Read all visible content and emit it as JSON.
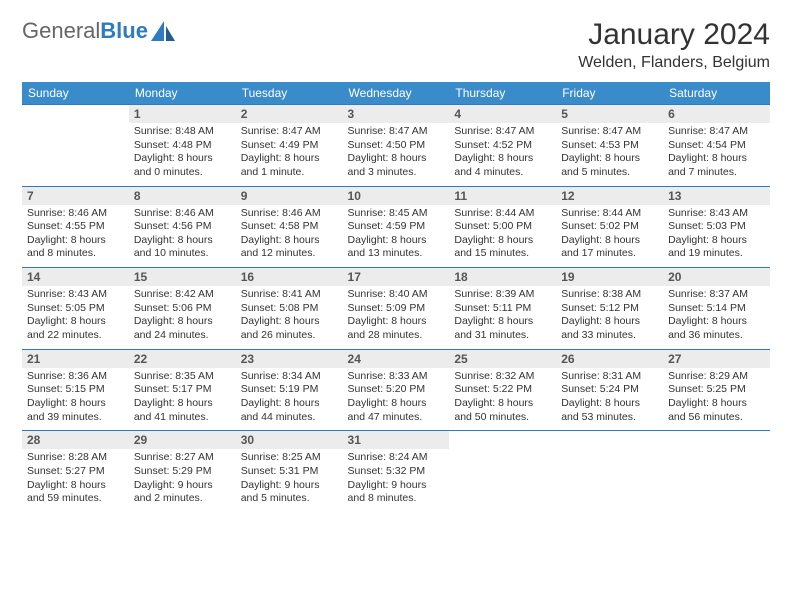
{
  "brand": {
    "part1": "General",
    "part2": "Blue"
  },
  "title": "January 2024",
  "location": "Welden, Flanders, Belgium",
  "colors": {
    "header_bg": "#3a8bc9",
    "header_text": "#ffffff",
    "daynum_bg": "#ececec",
    "rule": "#2e7bbf",
    "text": "#333333",
    "brand_blue": "#2e7bbf",
    "page_bg": "#ffffff"
  },
  "dayHeaders": [
    "Sunday",
    "Monday",
    "Tuesday",
    "Wednesday",
    "Thursday",
    "Friday",
    "Saturday"
  ],
  "weeks": [
    [
      null,
      {
        "n": "1",
        "sr": "8:48 AM",
        "ss": "4:48 PM",
        "dl": "8 hours and 0 minutes."
      },
      {
        "n": "2",
        "sr": "8:47 AM",
        "ss": "4:49 PM",
        "dl": "8 hours and 1 minute."
      },
      {
        "n": "3",
        "sr": "8:47 AM",
        "ss": "4:50 PM",
        "dl": "8 hours and 3 minutes."
      },
      {
        "n": "4",
        "sr": "8:47 AM",
        "ss": "4:52 PM",
        "dl": "8 hours and 4 minutes."
      },
      {
        "n": "5",
        "sr": "8:47 AM",
        "ss": "4:53 PM",
        "dl": "8 hours and 5 minutes."
      },
      {
        "n": "6",
        "sr": "8:47 AM",
        "ss": "4:54 PM",
        "dl": "8 hours and 7 minutes."
      }
    ],
    [
      {
        "n": "7",
        "sr": "8:46 AM",
        "ss": "4:55 PM",
        "dl": "8 hours and 8 minutes."
      },
      {
        "n": "8",
        "sr": "8:46 AM",
        "ss": "4:56 PM",
        "dl": "8 hours and 10 minutes."
      },
      {
        "n": "9",
        "sr": "8:46 AM",
        "ss": "4:58 PM",
        "dl": "8 hours and 12 minutes."
      },
      {
        "n": "10",
        "sr": "8:45 AM",
        "ss": "4:59 PM",
        "dl": "8 hours and 13 minutes."
      },
      {
        "n": "11",
        "sr": "8:44 AM",
        "ss": "5:00 PM",
        "dl": "8 hours and 15 minutes."
      },
      {
        "n": "12",
        "sr": "8:44 AM",
        "ss": "5:02 PM",
        "dl": "8 hours and 17 minutes."
      },
      {
        "n": "13",
        "sr": "8:43 AM",
        "ss": "5:03 PM",
        "dl": "8 hours and 19 minutes."
      }
    ],
    [
      {
        "n": "14",
        "sr": "8:43 AM",
        "ss": "5:05 PM",
        "dl": "8 hours and 22 minutes."
      },
      {
        "n": "15",
        "sr": "8:42 AM",
        "ss": "5:06 PM",
        "dl": "8 hours and 24 minutes."
      },
      {
        "n": "16",
        "sr": "8:41 AM",
        "ss": "5:08 PM",
        "dl": "8 hours and 26 minutes."
      },
      {
        "n": "17",
        "sr": "8:40 AM",
        "ss": "5:09 PM",
        "dl": "8 hours and 28 minutes."
      },
      {
        "n": "18",
        "sr": "8:39 AM",
        "ss": "5:11 PM",
        "dl": "8 hours and 31 minutes."
      },
      {
        "n": "19",
        "sr": "8:38 AM",
        "ss": "5:12 PM",
        "dl": "8 hours and 33 minutes."
      },
      {
        "n": "20",
        "sr": "8:37 AM",
        "ss": "5:14 PM",
        "dl": "8 hours and 36 minutes."
      }
    ],
    [
      {
        "n": "21",
        "sr": "8:36 AM",
        "ss": "5:15 PM",
        "dl": "8 hours and 39 minutes."
      },
      {
        "n": "22",
        "sr": "8:35 AM",
        "ss": "5:17 PM",
        "dl": "8 hours and 41 minutes."
      },
      {
        "n": "23",
        "sr": "8:34 AM",
        "ss": "5:19 PM",
        "dl": "8 hours and 44 minutes."
      },
      {
        "n": "24",
        "sr": "8:33 AM",
        "ss": "5:20 PM",
        "dl": "8 hours and 47 minutes."
      },
      {
        "n": "25",
        "sr": "8:32 AM",
        "ss": "5:22 PM",
        "dl": "8 hours and 50 minutes."
      },
      {
        "n": "26",
        "sr": "8:31 AM",
        "ss": "5:24 PM",
        "dl": "8 hours and 53 minutes."
      },
      {
        "n": "27",
        "sr": "8:29 AM",
        "ss": "5:25 PM",
        "dl": "8 hours and 56 minutes."
      }
    ],
    [
      {
        "n": "28",
        "sr": "8:28 AM",
        "ss": "5:27 PM",
        "dl": "8 hours and 59 minutes."
      },
      {
        "n": "29",
        "sr": "8:27 AM",
        "ss": "5:29 PM",
        "dl": "9 hours and 2 minutes."
      },
      {
        "n": "30",
        "sr": "8:25 AM",
        "ss": "5:31 PM",
        "dl": "9 hours and 5 minutes."
      },
      {
        "n": "31",
        "sr": "8:24 AM",
        "ss": "5:32 PM",
        "dl": "9 hours and 8 minutes."
      },
      null,
      null,
      null
    ]
  ],
  "labels": {
    "sunrise": "Sunrise:",
    "sunset": "Sunset:",
    "daylight": "Daylight:"
  }
}
